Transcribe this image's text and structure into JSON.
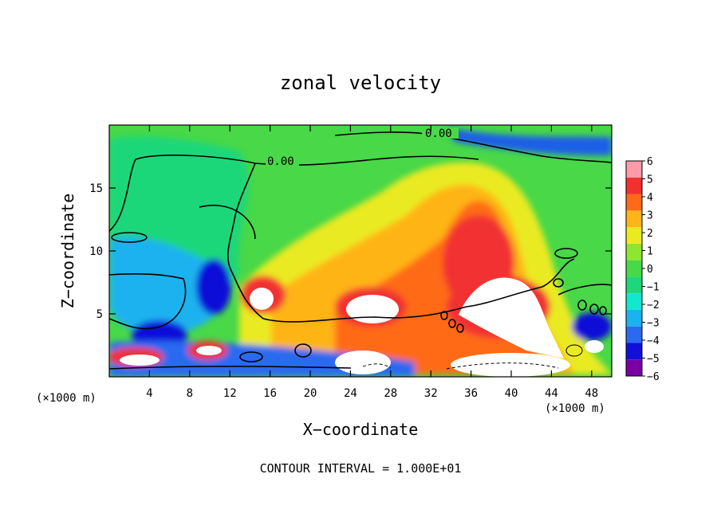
{
  "chart_data": {
    "type": "heatmap",
    "title": "zonal velocity",
    "xlabel": "X−coordinate",
    "ylabel": "Z−coordinate",
    "x_unit_left": "(×1000 m)",
    "x_unit_right": "(×1000 m)",
    "footer": "CONTOUR INTERVAL = 1.000E+01",
    "xlim": [
      0,
      50
    ],
    "ylim": [
      0,
      20
    ],
    "x_ticks": [
      4,
      8,
      12,
      16,
      20,
      24,
      28,
      32,
      36,
      40,
      44,
      48
    ],
    "x_tick_labels": [
      "4",
      "8",
      "12",
      "16",
      "20",
      "24",
      "28",
      "32",
      "36",
      "40",
      "44",
      "48"
    ],
    "y_ticks": [
      5,
      10,
      15
    ],
    "y_tick_labels": [
      "5",
      "10",
      "15"
    ],
    "contour_labels": [
      "0.00",
      "0.00"
    ],
    "colorbar": {
      "range": [
        -6,
        6
      ],
      "tick_labels": [
        "6",
        "5",
        "4",
        "3",
        "2",
        "1",
        "0",
        "−1",
        "−2",
        "−3",
        "−4",
        "−5",
        "−6"
      ],
      "tick_values": [
        6,
        5,
        4,
        3,
        2,
        1,
        0,
        -1,
        -2,
        -3,
        -4,
        -5,
        -6
      ],
      "colors": [
        "#7a00a6",
        "#1010d8",
        "#2b6af0",
        "#1ab2ef",
        "#10e8d0",
        "#1ed77a",
        "#48d848",
        "#8fe630",
        "#eaea20",
        "#ffb418",
        "#ff6a18",
        "#f23030",
        "#ff9aa8"
      ]
    },
    "features": [
      {
        "kind": "hot-core",
        "x": 37,
        "z": 11,
        "value": 5
      },
      {
        "kind": "saturated-positive",
        "x": 38,
        "z": 4,
        "value": 7
      },
      {
        "kind": "saturated-positive",
        "x": 26,
        "z": 5.5,
        "value": 7
      },
      {
        "kind": "saturated-positive",
        "x": 14.6,
        "z": 6,
        "value": 7
      },
      {
        "kind": "negative-core",
        "x": 10,
        "z": 7,
        "value": -5
      },
      {
        "kind": "negative-band",
        "x": 42,
        "z": 18.8,
        "value": -3
      }
    ]
  }
}
